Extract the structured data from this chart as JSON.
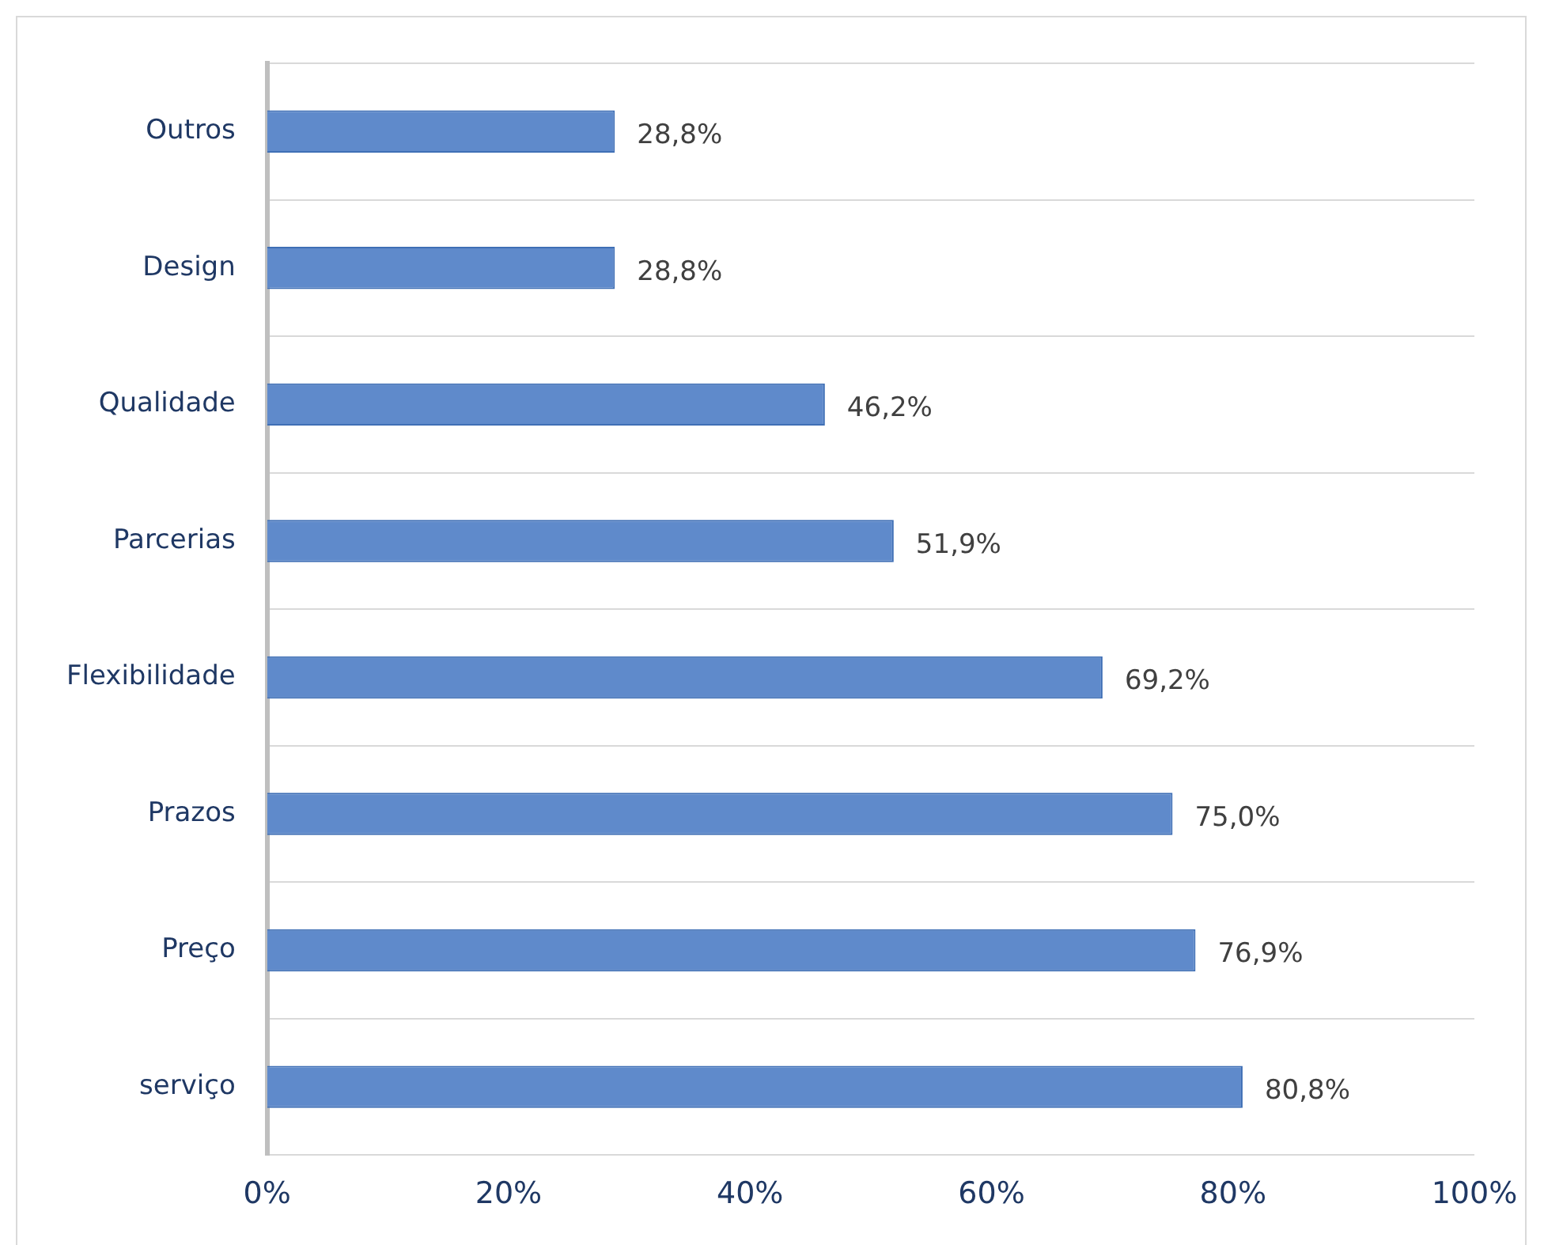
{
  "chart_data": {
    "type": "bar",
    "orientation": "horizontal",
    "categories": [
      "Outros",
      "Design",
      "Qualidade",
      "Parcerias",
      "Flexibilidade",
      "Prazos",
      "Preço",
      "serviço"
    ],
    "values": [
      28.8,
      28.8,
      46.2,
      51.9,
      69.2,
      75.0,
      76.9,
      80.8
    ],
    "value_labels": [
      "28,8%",
      "28,8%",
      "46,2%",
      "51,9%",
      "69,2%",
      "75,0%",
      "76,9%",
      "80,8%"
    ],
    "color": "#5f8acb",
    "xlim": [
      0,
      100
    ],
    "xticks": [
      {
        "value": 0,
        "label": "0%"
      },
      {
        "value": 20,
        "label": "20%"
      },
      {
        "value": 40,
        "label": "40%"
      },
      {
        "value": 60,
        "label": "60%"
      },
      {
        "value": 80,
        "label": "80%"
      },
      {
        "value": 100,
        "label": "100%"
      }
    ],
    "grid": "y",
    "legend": false
  }
}
